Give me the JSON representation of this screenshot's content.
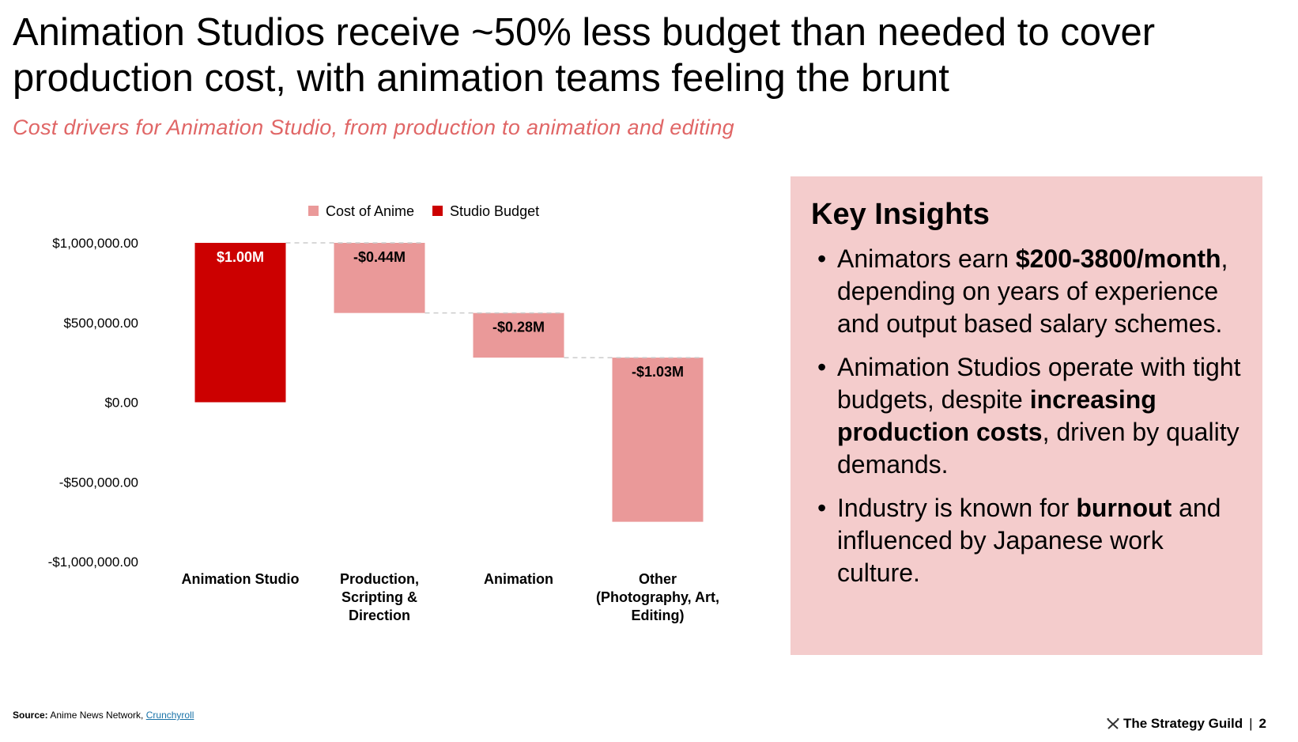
{
  "header": {
    "title": "Animation Studios receive ~50% less budget than needed to cover production cost, with animation teams feeling the brunt",
    "subtitle": "Cost drivers for Animation Studio, from production to animation and editing"
  },
  "chart_data": {
    "type": "waterfall",
    "categories": [
      "Animation Studio",
      "Production, Scripting & Direction",
      "Animation",
      "Other (Photography, Art, Editing)"
    ],
    "category_lines": [
      [
        "Animation Studio"
      ],
      [
        "Production,",
        "Scripting &",
        "Direction"
      ],
      [
        "Animation"
      ],
      [
        "Other",
        "(Photography, Art,",
        "Editing)"
      ]
    ],
    "values": [
      1000000,
      -440000,
      -280000,
      -1030000
    ],
    "data_labels": [
      "$1.00M",
      "-$0.44M",
      "-$0.28M",
      "-$1.03M"
    ],
    "series": [
      {
        "name": "Cost of Anime",
        "color": "#ea9999"
      },
      {
        "name": "Studio Budget",
        "color": "#cc0000"
      }
    ],
    "ylim": [
      -1000000,
      1000000
    ],
    "yticks": [
      1000000,
      500000,
      0,
      -500000,
      -1000000
    ],
    "ytick_labels": [
      "$1,000,000.00",
      "$500,000.00",
      "$0.00",
      "-$500,000.00",
      "-$1,000,000.00"
    ],
    "legend_position": "top-center"
  },
  "insights": {
    "title": "Key Insights",
    "items": [
      {
        "parts": [
          {
            "t": "Animators earn "
          },
          {
            "t": "$200-3800/month",
            "b": true
          },
          {
            "t": ", depending on years of experience and output based salary schemes."
          }
        ]
      },
      {
        "parts": [
          {
            "t": "Animation Studios operate with tight budgets, despite "
          },
          {
            "t": "increasing production costs",
            "b": true
          },
          {
            "t": ", driven by quality demands."
          }
        ]
      },
      {
        "parts": [
          {
            "t": "Industry is known for "
          },
          {
            "t": "burnout",
            "b": true
          },
          {
            "t": " and influenced by Japanese work culture."
          }
        ]
      }
    ]
  },
  "footer": {
    "source_label": "Source:",
    "source_text": "Anime News Network,",
    "source_link": "Crunchyroll",
    "brand": "The Strategy Guild",
    "page_number": "2"
  },
  "colors": {
    "accent": "#e06666",
    "budget": "#cc0000",
    "cost": "#ea9999",
    "panel": "#f4cccc"
  }
}
